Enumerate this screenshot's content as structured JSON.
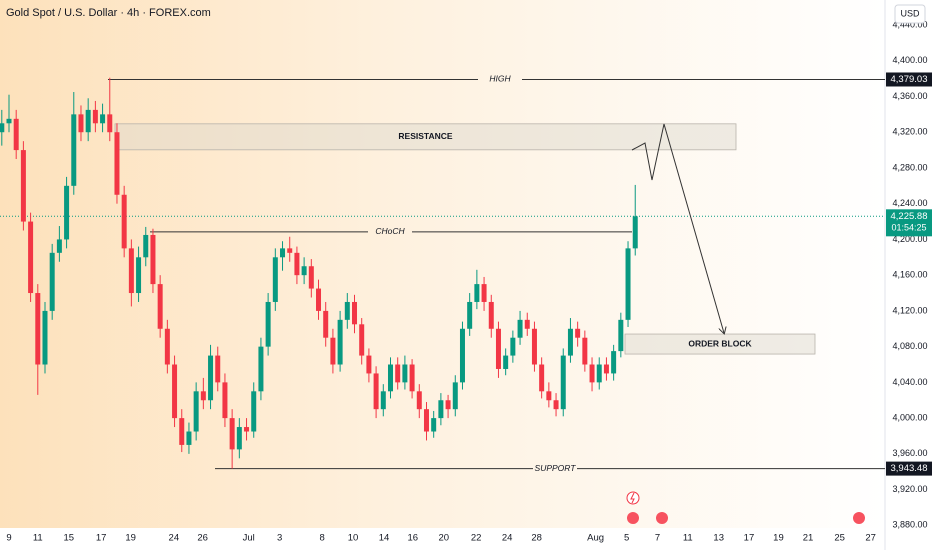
{
  "header": {
    "title": "Gold Spot / U.S. Dollar · 4h · FOREX.com",
    "currency": "USD"
  },
  "chart_data": {
    "type": "candlestick",
    "x": [
      -1,
      0,
      1,
      2,
      3,
      4,
      5,
      6,
      7,
      8,
      9,
      10,
      11,
      12,
      13,
      14,
      15,
      16,
      17,
      18,
      19,
      20,
      21,
      22,
      23,
      24,
      25,
      26,
      27,
      28,
      29,
      30,
      31,
      32,
      33,
      34,
      35,
      36,
      37,
      38,
      39,
      40,
      41,
      42,
      43,
      44,
      45,
      46,
      47,
      48,
      49,
      50,
      51,
      52,
      53,
      54,
      55,
      56,
      57,
      58,
      59,
      60,
      61,
      62,
      63,
      64,
      65,
      66,
      67,
      68,
      69,
      70,
      71,
      72,
      73,
      74,
      75,
      76,
      77,
      78,
      79,
      80,
      81,
      82,
      83,
      84,
      85,
      86,
      87
    ],
    "open": [
      4320,
      4330,
      4335,
      4300,
      4220,
      4140,
      4060,
      4120,
      4185,
      4200,
      4260,
      4340,
      4320,
      4345,
      4330,
      4340,
      4320,
      4250,
      4190,
      4140,
      4180,
      4205,
      4150,
      4100,
      4060,
      4000,
      3970,
      3985,
      4030,
      4020,
      4070,
      4040,
      4000,
      3965,
      3990,
      3985,
      4030,
      4080,
      4130,
      4180,
      4190,
      4185,
      4160,
      4170,
      4145,
      4120,
      4090,
      4060,
      4110,
      4130,
      4105,
      4070,
      4050,
      4010,
      4030,
      4060,
      4040,
      4060,
      4030,
      4010,
      3985,
      4000,
      4020,
      4010,
      4040,
      4100,
      4130,
      4150,
      4130,
      4100,
      4055,
      4070,
      4090,
      4110,
      4100,
      4060,
      4030,
      4020,
      4010,
      4070,
      4100,
      4090,
      4060,
      4040,
      4060,
      4050,
      4075,
      4110,
      4190
    ],
    "high": [
      4345,
      4362,
      4345,
      4310,
      4230,
      4150,
      4130,
      4195,
      4215,
      4270,
      4365,
      4350,
      4358,
      4355,
      4352,
      4381,
      4330,
      4260,
      4200,
      4192,
      4214,
      4212,
      4160,
      4110,
      4070,
      4010,
      3995,
      4040,
      4045,
      4082,
      4080,
      4050,
      4010,
      4000,
      4000,
      4040,
      4090,
      4140,
      4190,
      4198,
      4203,
      4192,
      4180,
      4178,
      4155,
      4130,
      4100,
      4120,
      4140,
      4138,
      4112,
      4078,
      4058,
      4038,
      4068,
      4068,
      4070,
      4066,
      4038,
      4018,
      4008,
      4028,
      4026,
      4048,
      4108,
      4140,
      4166,
      4158,
      4138,
      4108,
      4078,
      4098,
      4120,
      4118,
      4108,
      4068,
      4040,
      4028,
      4078,
      4112,
      4108,
      4098,
      4068,
      4068,
      4068,
      4082,
      4118,
      4198,
      4261
    ],
    "low": [
      4305,
      4320,
      4290,
      4210,
      4130,
      4026,
      4050,
      4110,
      4175,
      4190,
      4250,
      4310,
      4310,
      4320,
      4320,
      4310,
      4240,
      4180,
      4125,
      4130,
      4170,
      4140,
      4090,
      4050,
      3990,
      3962,
      3960,
      3975,
      4010,
      4010,
      4030,
      3990,
      3943.48,
      3955,
      3975,
      3978,
      4020,
      4070,
      4120,
      4165,
      4175,
      4150,
      4150,
      4135,
      4110,
      4080,
      4050,
      4052,
      4100,
      4095,
      4060,
      4040,
      4000,
      4002,
      4022,
      4032,
      4032,
      4022,
      4000,
      3975,
      3978,
      3992,
      4000,
      4002,
      4032,
      4092,
      4122,
      4120,
      4090,
      4045,
      4048,
      4062,
      4082,
      4092,
      4052,
      4022,
      4012,
      4002,
      4002,
      4062,
      4080,
      4052,
      4030,
      4032,
      4042,
      4042,
      4068,
      4102,
      4182
    ],
    "close": [
      4330,
      4335,
      4300,
      4220,
      4140,
      4060,
      4120,
      4185,
      4200,
      4260,
      4340,
      4320,
      4345,
      4330,
      4340,
      4320,
      4250,
      4190,
      4140,
      4180,
      4205,
      4150,
      4100,
      4060,
      4000,
      3970,
      3985,
      4030,
      4020,
      4070,
      4040,
      4000,
      3965,
      3990,
      3985,
      4030,
      4080,
      4130,
      4180,
      4190,
      4185,
      4160,
      4170,
      4145,
      4120,
      4090,
      4060,
      4110,
      4130,
      4105,
      4070,
      4050,
      4010,
      4030,
      4060,
      4040,
      4060,
      4030,
      4010,
      3985,
      4000,
      4020,
      4010,
      4040,
      4100,
      4130,
      4150,
      4130,
      4100,
      4055,
      4070,
      4090,
      4110,
      4100,
      4060,
      4030,
      4020,
      4010,
      4070,
      4100,
      4090,
      4060,
      4040,
      4060,
      4050,
      4075,
      4110,
      4190,
      4225.88
    ],
    "up_color": "#089981",
    "down_color": "#f23645",
    "xlim": [
      -1.25,
      121.7
    ],
    "ylim": [
      3877,
      4468
    ],
    "grid": false,
    "xticks": [
      {
        "value": 0,
        "label": "9"
      },
      {
        "value": 4,
        "label": "11"
      },
      {
        "value": 8.3,
        "label": "15"
      },
      {
        "value": 12.8,
        "label": "17"
      },
      {
        "value": 16.9,
        "label": "19"
      },
      {
        "value": 22.9,
        "label": "24"
      },
      {
        "value": 26.9,
        "label": "26"
      },
      {
        "value": 33.3,
        "label": "Jul"
      },
      {
        "value": 37.6,
        "label": "3"
      },
      {
        "value": 43.5,
        "label": "8"
      },
      {
        "value": 47.8,
        "label": "10"
      },
      {
        "value": 52.1,
        "label": "14"
      },
      {
        "value": 56.1,
        "label": "16"
      },
      {
        "value": 60.4,
        "label": "20"
      },
      {
        "value": 64.9,
        "label": "22"
      },
      {
        "value": 69.2,
        "label": "24"
      },
      {
        "value": 73.3,
        "label": "28"
      },
      {
        "value": 81.5,
        "label": "Aug"
      },
      {
        "value": 85.8,
        "label": "5"
      },
      {
        "value": 90.1,
        "label": "7"
      },
      {
        "value": 94.3,
        "label": "11"
      },
      {
        "value": 98.6,
        "label": "13"
      },
      {
        "value": 102.8,
        "label": "17"
      },
      {
        "value": 106.9,
        "label": "19"
      },
      {
        "value": 111,
        "label": "21"
      },
      {
        "value": 115.4,
        "label": "25"
      },
      {
        "value": 119.7,
        "label": "27"
      }
    ],
    "yticks": [
      {
        "value": 3880,
        "label": "3,880.00"
      },
      {
        "value": 3920,
        "label": "3,920.00"
      },
      {
        "value": 3960,
        "label": "3,960.00"
      },
      {
        "value": 4000,
        "label": "4,000.00"
      },
      {
        "value": 4040,
        "label": "4,040.00"
      },
      {
        "value": 4080,
        "label": "4,080.00"
      },
      {
        "value": 4120,
        "label": "4,120.00"
      },
      {
        "value": 4160,
        "label": "4,160.00"
      },
      {
        "value": 4200,
        "label": "4,200.00"
      },
      {
        "value": 4240,
        "label": "4,240.00"
      },
      {
        "value": 4280,
        "label": "4,280.00"
      },
      {
        "value": 4320,
        "label": "4,320.00"
      },
      {
        "value": 4360,
        "label": "4,360.00"
      },
      {
        "value": 4400,
        "label": "4,400.00"
      },
      {
        "value": 4440,
        "label": "4,440.00"
      }
    ],
    "levels": [
      {
        "name": "HIGH",
        "value": 4379.03,
        "label": "4,379.03"
      },
      {
        "name": "CHoCH",
        "value": 4208.4
      },
      {
        "name": "SUPPORT",
        "value": 3943.48,
        "label": "3,943.48"
      }
    ],
    "zones": [
      {
        "name": "RESISTANCE",
        "range": [
          4300.3,
          4329.4
        ]
      },
      {
        "name": "ORDER BLOCK",
        "range": [
          4071.7,
          4094.1
        ]
      }
    ],
    "last_price": {
      "value": 4225.88,
      "label": "4,225.88",
      "countdown": "01:54:25"
    }
  }
}
